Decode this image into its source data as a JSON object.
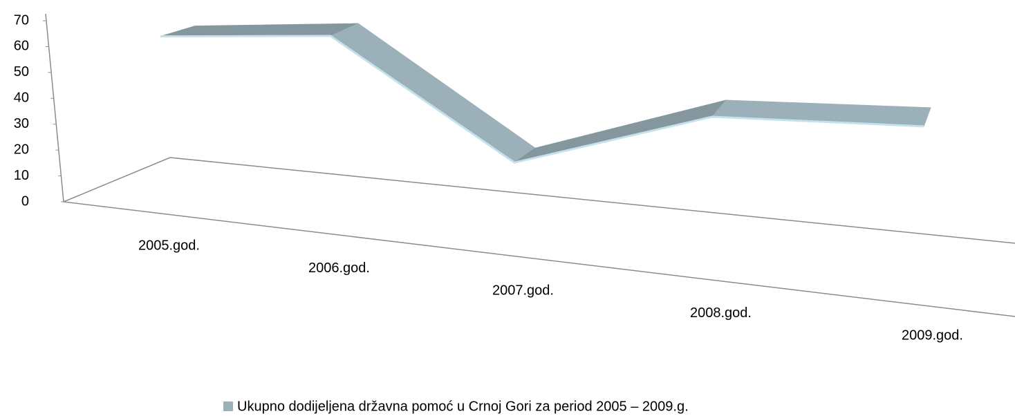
{
  "chart_data": {
    "type": "line3d",
    "categories": [
      "2005.god.",
      "2006.god.",
      "2007.god.",
      "2008.god.",
      "2009.god."
    ],
    "series": [
      {
        "name": "Ukupno dodijeljena državna pomoć u Crnoj Gori za period 2005 – 2009.g.",
        "color": "#9bb0b9",
        "values": [
          63,
          63,
          12,
          34,
          34
        ]
      }
    ],
    "ylim": [
      0,
      70
    ],
    "yticks": [
      0,
      10,
      20,
      30,
      40,
      50,
      60,
      70
    ],
    "legend": "bottom"
  }
}
